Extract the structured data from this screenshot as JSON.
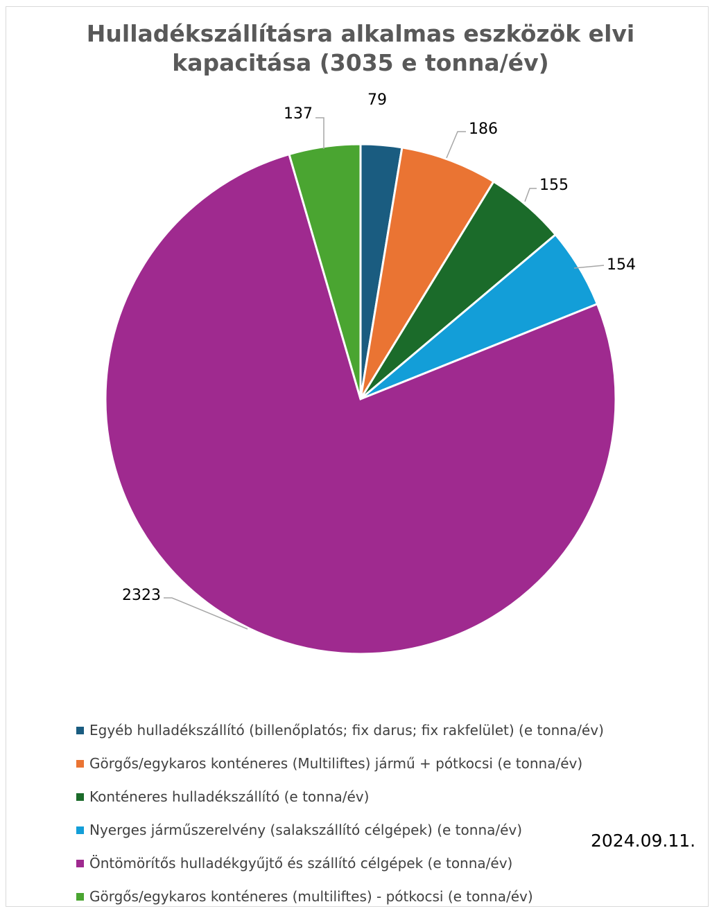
{
  "chart_data": {
    "type": "pie",
    "title_lines": [
      "Hulladékszállításra alkalmas eszközök elvi",
      "kapacitása (3035 e tonna/év)"
    ],
    "slices": [
      {
        "name": "Egyéb hulladékszállító (billenőplatós; fix darus; fix rakfelület) (e tonna/év)",
        "value": 79,
        "label": "79",
        "color": "#1a5c80"
      },
      {
        "name": "Görgős/egykaros konténeres (Multiliftes) jármű + pótkocsi (e tonna/év)",
        "value": 186,
        "label": "186",
        "color": "#ea7433"
      },
      {
        "name": "Konténeres hulladékszállító (e tonna/év)",
        "value": 155,
        "label": "155",
        "color": "#1b6b2a"
      },
      {
        "name": "Nyerges járműszerelvény (salakszállító célgépek) (e tonna/év)",
        "value": 154,
        "label": "154",
        "color": "#139ed8"
      },
      {
        "name": "Öntömörítős hulladékgyűjtő és szállító célgépek (e tonna/év)",
        "value": 2323,
        "label": "2323",
        "color": "#9f2a8f"
      },
      {
        "name": "Görgős/egykaros konténeres (multiliftes) - pótkocsi (e tonna/év)",
        "value": 137,
        "label": "137",
        "color": "#4aa531"
      }
    ],
    "legend_position": "bottom",
    "grid": false
  },
  "date_stamp": "2024.09.11."
}
